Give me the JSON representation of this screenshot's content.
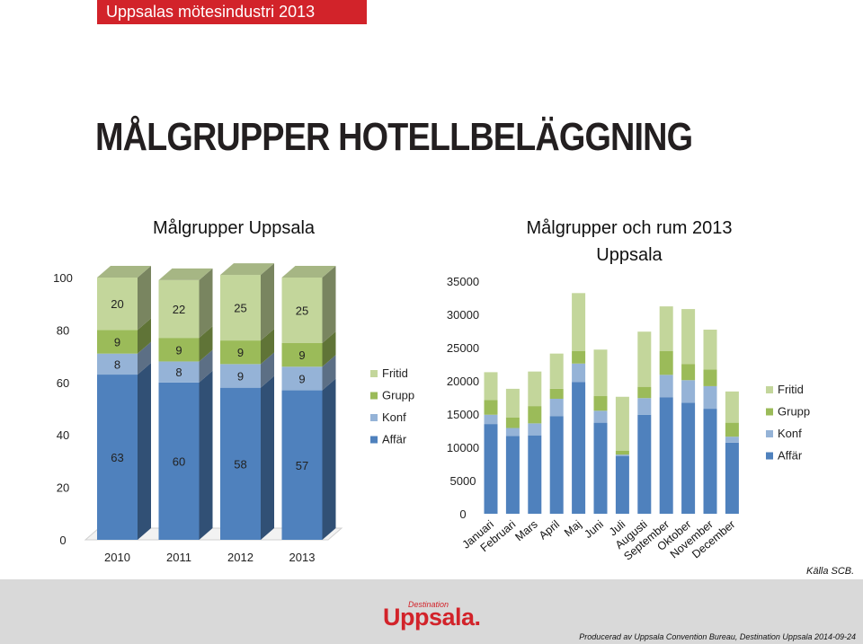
{
  "header": {
    "tag": "Uppsalas mötesindustri 2013"
  },
  "title": "MÅLGRUPPER HOTELLBELÄGGNING",
  "source_note": "Källa SCB.",
  "footer": {
    "brand_small": "Destination",
    "brand_big": "Uppsala.",
    "credit": "Producerad av Uppsala Convention Bureau, Destination Uppsala 2014-09-24"
  },
  "colors": {
    "affar": "#4f81bd",
    "konf": "#95b3d7",
    "grupp": "#9bbb59",
    "fritid": "#c3d69b",
    "brand_red": "#d2232a"
  },
  "chart_data": [
    {
      "type": "bar",
      "stacked": true,
      "style": "3d",
      "title": "Målgrupper Uppsala",
      "categories": [
        "2010",
        "2011",
        "2012",
        "2013"
      ],
      "series": [
        {
          "name": "Affär",
          "values": [
            63,
            60,
            58,
            57
          ]
        },
        {
          "name": "Konf",
          "values": [
            8,
            8,
            9,
            9
          ]
        },
        {
          "name": "Grupp",
          "values": [
            9,
            9,
            9,
            9
          ]
        },
        {
          "name": "Fritid",
          "values": [
            20,
            22,
            25,
            25
          ]
        }
      ],
      "yticks": [
        "0",
        "20",
        "40",
        "60",
        "80",
        "100"
      ],
      "ylim": [
        0,
        100
      ],
      "legend": "right"
    },
    {
      "type": "bar",
      "stacked": true,
      "title": "Målgrupper och rum 2013",
      "subtitle": "Uppsala",
      "categories": [
        "Januari",
        "Februari",
        "Mars",
        "April",
        "Maj",
        "Juni",
        "Juli",
        "Augusti",
        "September",
        "Oktober",
        "November",
        "December"
      ],
      "series": [
        {
          "name": "Affär",
          "values": [
            13500,
            11700,
            11800,
            14700,
            19800,
            13700,
            8700,
            14900,
            17500,
            16700,
            15800,
            10700
          ]
        },
        {
          "name": "Konf",
          "values": [
            1400,
            1200,
            1800,
            2600,
            2800,
            1800,
            200,
            2500,
            3400,
            3400,
            3400,
            900
          ]
        },
        {
          "name": "Grupp",
          "values": [
            2200,
            1600,
            2600,
            1500,
            1900,
            2200,
            600,
            1700,
            3600,
            2400,
            2500,
            2100
          ]
        },
        {
          "name": "Fritid",
          "values": [
            4200,
            4300,
            5200,
            5300,
            8700,
            7000,
            8100,
            8300,
            6700,
            8300,
            6000,
            4700
          ]
        }
      ],
      "yticks": [
        "0",
        "5000",
        "10000",
        "15000",
        "20000",
        "25000",
        "30000",
        "35000"
      ],
      "ylim": [
        0,
        35000
      ],
      "legend": "right"
    }
  ]
}
